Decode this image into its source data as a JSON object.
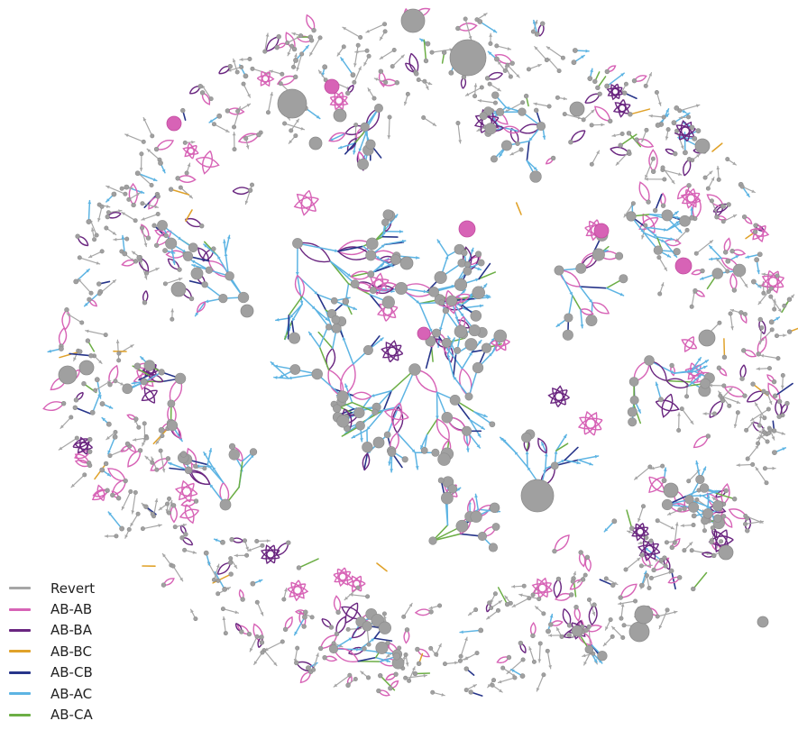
{
  "legend": {
    "placement": "bottom-left",
    "items": [
      {
        "key": "revert",
        "label": "Revert",
        "color": "#a6a6a6"
      },
      {
        "key": "ab_ab",
        "label": "AB-AB",
        "color": "#d763b6"
      },
      {
        "key": "ab_ba",
        "label": "AB-BA",
        "color": "#6a2680"
      },
      {
        "key": "ab_bc",
        "label": "AB-BC",
        "color": "#e0a22a"
      },
      {
        "key": "ab_cb",
        "label": "AB-CB",
        "color": "#27358a"
      },
      {
        "key": "ab_ac",
        "label": "AB-AC",
        "color": "#5db4e3"
      },
      {
        "key": "ab_ca",
        "label": "AB-CA",
        "color": "#6cae45"
      }
    ]
  },
  "colors": {
    "node": "#a0a0a0",
    "node_stroke": "#8c8c8c",
    "background": "#ffffff"
  }
}
